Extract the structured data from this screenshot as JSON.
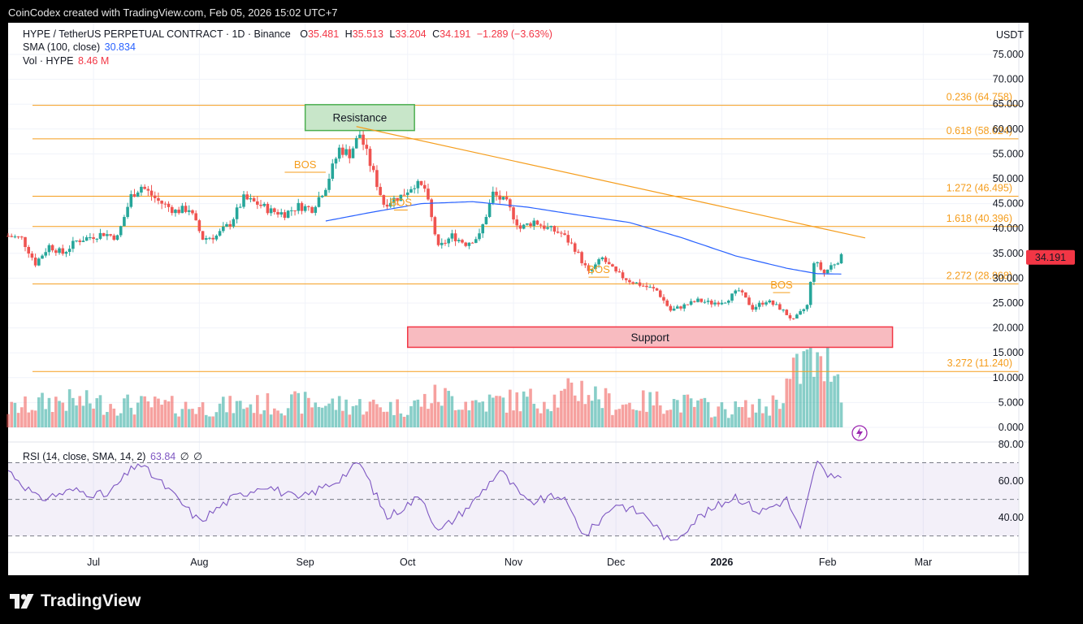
{
  "header": {
    "credit": "CoinCodex created with TradingView.com, Feb 05, 2026 15:02 UTC+7"
  },
  "legend": {
    "symbol": "HYPE / TetherUS PERPETUAL CONTRACT · 1D · Binance",
    "o_label": "O",
    "o": "35.481",
    "h_label": "H",
    "h": "35.513",
    "l_label": "L",
    "l": "33.204",
    "c_label": "C",
    "c": "34.191",
    "change": "−1.289 (−3.63%)",
    "sma_label": "SMA (100, close)",
    "sma_value": "30.834",
    "vol_label": "Vol · HYPE",
    "vol_value": "8.46 M",
    "rsi_label": "RSI (14, close, SMA, 14, 2)",
    "rsi_value": "63.84",
    "rsi_na1": "∅",
    "rsi_na2": "∅"
  },
  "price_axis": {
    "currency": "USDT",
    "ticks": [
      "75.000",
      "70.000",
      "65.000",
      "60.000",
      "55.000",
      "50.000",
      "45.000",
      "40.000",
      "35.000",
      "30.000",
      "25.000",
      "20.000",
      "15.000",
      "10.000",
      "5.000",
      "0.000"
    ],
    "current_price": "34.191"
  },
  "rsi_axis": {
    "ticks": [
      "80.00",
      "60.00",
      "40.00"
    ]
  },
  "time_axis": {
    "labels": [
      "Jul",
      "Aug",
      "Sep",
      "Oct",
      "Nov",
      "Dec",
      "2026",
      "Feb",
      "Mar"
    ]
  },
  "annotations": {
    "resistance": "Resistance",
    "support": "Support",
    "bos": "BOS",
    "fib_levels": [
      {
        "label": "0.236 (64.758)",
        "price": 64.758
      },
      {
        "label": "0.618 (58.024)",
        "price": 58.024
      },
      {
        "label": "1.272 (46.495)",
        "price": 46.495
      },
      {
        "label": "1.618 (40.396)",
        "price": 40.396
      },
      {
        "label": "2.272 (28.868)",
        "price": 28.868
      },
      {
        "label": "3.272 (11.240)",
        "price": 11.24
      }
    ],
    "resistance_zone": [
      59.7,
      64.9
    ],
    "support_zone": [
      16.1,
      20.2
    ],
    "trendline": {
      "from": {
        "date": "2025-09-16",
        "price": 60.5
      },
      "to": {
        "date": "2026-02-05",
        "price": 38.1
      }
    },
    "bos_segments": [
      {
        "date_from": "2025-08-26",
        "date_to": "2025-09-07",
        "price": 51.3
      },
      {
        "date_from": "2025-09-27",
        "date_to": "2025-10-01",
        "price": 43.7
      },
      {
        "date_from": "2025-11-23",
        "date_to": "2025-11-29",
        "price": 30.2
      },
      {
        "date_from": "2026-01-16",
        "date_to": "2026-01-21",
        "price": 27.1
      }
    ]
  },
  "chart_data": {
    "type": "line",
    "title": "HYPE / TetherUS PERPETUAL CONTRACT · 1D · Binance",
    "x_range": [
      "2025-06-06",
      "2026-03-09"
    ],
    "ylim": [
      0,
      78
    ],
    "grid": true,
    "series": [
      {
        "name": "HYPE / TetherUS PERPETUAL CONTRACT",
        "kind": "candlestick-approx",
        "points": [
          [
            "2025-06-06",
            38.5
          ],
          [
            "2025-06-10",
            38.0
          ],
          [
            "2025-06-14",
            33.0
          ],
          [
            "2025-06-18",
            36.5
          ],
          [
            "2025-06-22",
            35.0
          ],
          [
            "2025-06-26",
            37.5
          ],
          [
            "2025-06-30",
            38.3
          ],
          [
            "2025-07-04",
            39.0
          ],
          [
            "2025-07-08",
            38.2
          ],
          [
            "2025-07-12",
            46.5
          ],
          [
            "2025-07-15",
            48.5
          ],
          [
            "2025-07-20",
            45.5
          ],
          [
            "2025-07-25",
            43.5
          ],
          [
            "2025-07-29",
            44.0
          ],
          [
            "2025-08-02",
            38.0
          ],
          [
            "2025-08-06",
            38.5
          ],
          [
            "2025-08-10",
            41.0
          ],
          [
            "2025-08-14",
            46.0
          ],
          [
            "2025-08-18",
            45.0
          ],
          [
            "2025-08-22",
            43.5
          ],
          [
            "2025-08-26",
            43.0
          ],
          [
            "2025-08-30",
            44.5
          ],
          [
            "2025-09-03",
            44.0
          ],
          [
            "2025-09-07",
            48.5
          ],
          [
            "2025-09-11",
            56.0
          ],
          [
            "2025-09-14",
            55.0
          ],
          [
            "2025-09-17",
            59.0
          ],
          [
            "2025-09-20",
            53.0
          ],
          [
            "2025-09-24",
            45.0
          ],
          [
            "2025-09-29",
            46.5
          ],
          [
            "2025-10-03",
            49.0
          ],
          [
            "2025-10-06",
            48.0
          ],
          [
            "2025-10-10",
            36.0
          ],
          [
            "2025-10-14",
            38.5
          ],
          [
            "2025-10-18",
            37.0
          ],
          [
            "2025-10-22",
            38.5
          ],
          [
            "2025-10-26",
            47.0
          ],
          [
            "2025-10-30",
            45.0
          ],
          [
            "2025-11-03",
            40.0
          ],
          [
            "2025-11-07",
            41.5
          ],
          [
            "2025-11-11",
            40.0
          ],
          [
            "2025-11-15",
            39.0
          ],
          [
            "2025-11-19",
            36.0
          ],
          [
            "2025-11-23",
            31.0
          ],
          [
            "2025-11-27",
            34.0
          ],
          [
            "2025-12-01",
            31.0
          ],
          [
            "2025-12-05",
            29.5
          ],
          [
            "2025-12-09",
            28.5
          ],
          [
            "2025-12-13",
            27.5
          ],
          [
            "2025-12-17",
            23.5
          ],
          [
            "2025-12-21",
            24.5
          ],
          [
            "2025-12-25",
            25.5
          ],
          [
            "2025-12-29",
            25.0
          ],
          [
            "2026-01-02",
            25.5
          ],
          [
            "2026-01-06",
            27.5
          ],
          [
            "2026-01-10",
            24.0
          ],
          [
            "2026-01-14",
            25.5
          ],
          [
            "2026-01-18",
            24.0
          ],
          [
            "2026-01-22",
            21.5
          ],
          [
            "2026-01-26",
            24.5
          ],
          [
            "2026-01-28",
            33.5
          ],
          [
            "2026-01-31",
            31.0
          ],
          [
            "2026-02-02",
            32.5
          ],
          [
            "2026-02-05",
            34.191
          ]
        ]
      },
      {
        "name": "SMA (100, close)",
        "points": [
          [
            "2025-09-07",
            41.5
          ],
          [
            "2025-09-20",
            43.2
          ],
          [
            "2025-10-05",
            45.0
          ],
          [
            "2025-10-20",
            45.4
          ],
          [
            "2025-11-05",
            44.3
          ],
          [
            "2025-11-20",
            42.7
          ],
          [
            "2025-12-05",
            41.2
          ],
          [
            "2025-12-20",
            38.2
          ],
          [
            "2026-01-05",
            34.5
          ],
          [
            "2026-01-20",
            32.0
          ],
          [
            "2026-01-29",
            30.9
          ],
          [
            "2026-02-05",
            30.834
          ]
        ]
      },
      {
        "name": "Vol · HYPE",
        "points": [
          [
            "2025-06-06",
            4.0
          ],
          [
            "2025-06-20",
            6.0
          ],
          [
            "2025-07-01",
            5.5
          ],
          [
            "2025-07-15",
            5.0
          ],
          [
            "2025-08-01",
            4.5
          ],
          [
            "2025-08-15",
            5.0
          ],
          [
            "2025-09-01",
            5.5
          ],
          [
            "2025-09-15",
            5.0
          ],
          [
            "2025-10-01",
            4.5
          ],
          [
            "2025-10-10",
            7.0
          ],
          [
            "2025-10-20",
            5.5
          ],
          [
            "2025-11-01",
            6.0
          ],
          [
            "2025-11-15",
            6.5
          ],
          [
            "2025-11-20",
            9.0
          ],
          [
            "2025-12-01",
            5.0
          ],
          [
            "2025-12-15",
            6.0
          ],
          [
            "2026-01-01",
            4.0
          ],
          [
            "2026-01-15",
            4.5
          ],
          [
            "2026-01-27",
            16.0
          ],
          [
            "2026-01-30",
            12.0
          ],
          [
            "2026-02-02",
            18.0
          ],
          [
            "2026-02-05",
            8.46
          ]
        ]
      },
      {
        "name": "RSI (14, close, SMA, 14, 2)",
        "points": [
          [
            "2025-06-06",
            66
          ],
          [
            "2025-06-15",
            50
          ],
          [
            "2025-06-25",
            55
          ],
          [
            "2025-07-05",
            52
          ],
          [
            "2025-07-14",
            70
          ],
          [
            "2025-07-22",
            57
          ],
          [
            "2025-08-01",
            38
          ],
          [
            "2025-08-10",
            50
          ],
          [
            "2025-08-20",
            58
          ],
          [
            "2025-08-30",
            50
          ],
          [
            "2025-09-10",
            60
          ],
          [
            "2025-09-17",
            70
          ],
          [
            "2025-09-25",
            40
          ],
          [
            "2025-10-05",
            52
          ],
          [
            "2025-10-10",
            32
          ],
          [
            "2025-10-20",
            48
          ],
          [
            "2025-10-28",
            66
          ],
          [
            "2025-11-05",
            48
          ],
          [
            "2025-11-15",
            52
          ],
          [
            "2025-11-22",
            30
          ],
          [
            "2025-12-01",
            48
          ],
          [
            "2025-12-10",
            41
          ],
          [
            "2025-12-17",
            26
          ],
          [
            "2025-12-25",
            40
          ],
          [
            "2026-01-05",
            52
          ],
          [
            "2026-01-12",
            43
          ],
          [
            "2026-01-20",
            50
          ],
          [
            "2026-01-24",
            33
          ],
          [
            "2026-01-29",
            72
          ],
          [
            "2026-02-01",
            61
          ],
          [
            "2026-02-05",
            63.84
          ]
        ]
      }
    ],
    "rsi_ylim": [
      20,
      80
    ],
    "rsi_levels": [
      70,
      50,
      30
    ]
  },
  "colors": {
    "up": "#26a69a",
    "down": "#ef5350",
    "sma": "#2962ff",
    "fib": "#f59d1c",
    "rsi": "#7e57c2",
    "resistance_fill": "#c8e6c9",
    "resistance_stroke": "#4caf50",
    "support_fill": "#f8bbc0",
    "support_stroke": "#f23645",
    "price_tag": "#f23645"
  },
  "brand": {
    "name": "TradingView"
  }
}
